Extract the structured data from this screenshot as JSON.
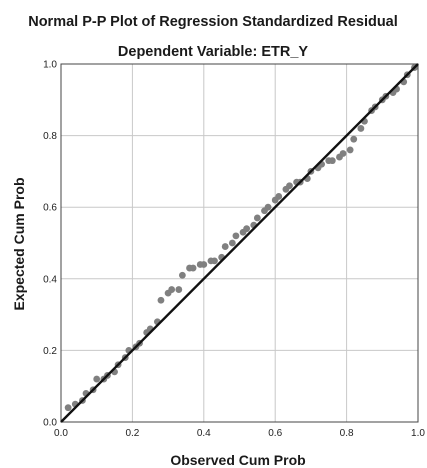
{
  "chart_data": {
    "type": "scatter",
    "title": "Normal P-P Plot of Regression Standardized Residual",
    "subtitle": "Dependent Variable: ETR_Y",
    "xlabel": "Observed Cum Prob",
    "ylabel": "Expected Cum Prob",
    "xlim": [
      0.0,
      1.0
    ],
    "ylim": [
      0.0,
      1.0
    ],
    "xticks": [
      "0.0",
      "0.2",
      "0.4",
      "0.6",
      "0.8",
      "1.0"
    ],
    "yticks": [
      "0.0",
      "0.2",
      "0.4",
      "0.6",
      "0.8",
      "1.0"
    ],
    "grid": true,
    "reference_line": {
      "from": [
        0.0,
        0.0
      ],
      "to": [
        1.0,
        1.0
      ],
      "color": "#111111"
    },
    "marker_color": "#808080",
    "points": {
      "x": [
        0.02,
        0.04,
        0.06,
        0.07,
        0.09,
        0.1,
        0.12,
        0.13,
        0.15,
        0.16,
        0.18,
        0.19,
        0.21,
        0.22,
        0.24,
        0.25,
        0.27,
        0.28,
        0.3,
        0.31,
        0.33,
        0.34,
        0.36,
        0.37,
        0.39,
        0.4,
        0.42,
        0.43,
        0.45,
        0.46,
        0.48,
        0.49,
        0.51,
        0.52,
        0.54,
        0.55,
        0.57,
        0.58,
        0.6,
        0.61,
        0.63,
        0.64,
        0.66,
        0.67,
        0.69,
        0.7,
        0.72,
        0.73,
        0.75,
        0.76,
        0.78,
        0.79,
        0.81,
        0.82,
        0.84,
        0.85,
        0.87,
        0.88,
        0.9,
        0.91,
        0.93,
        0.94,
        0.96,
        0.97,
        0.99
      ],
      "y": [
        0.04,
        0.05,
        0.06,
        0.08,
        0.09,
        0.12,
        0.12,
        0.13,
        0.14,
        0.16,
        0.18,
        0.2,
        0.21,
        0.22,
        0.25,
        0.26,
        0.28,
        0.34,
        0.36,
        0.37,
        0.37,
        0.41,
        0.43,
        0.43,
        0.44,
        0.44,
        0.45,
        0.45,
        0.46,
        0.49,
        0.5,
        0.52,
        0.53,
        0.54,
        0.55,
        0.57,
        0.59,
        0.6,
        0.62,
        0.63,
        0.65,
        0.66,
        0.67,
        0.67,
        0.68,
        0.7,
        0.71,
        0.72,
        0.73,
        0.73,
        0.74,
        0.75,
        0.76,
        0.79,
        0.82,
        0.84,
        0.87,
        0.88,
        0.9,
        0.91,
        0.92,
        0.93,
        0.95,
        0.97,
        0.99
      ]
    }
  }
}
